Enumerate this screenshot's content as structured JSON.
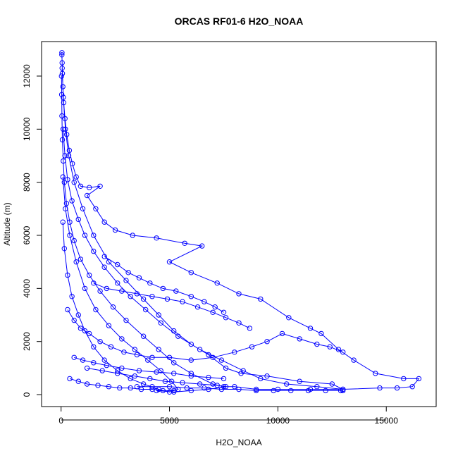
{
  "chart_data": {
    "type": "scatter",
    "title": "ORCAS RF01-6 H2O_NOAA",
    "xlabel": "H2O_NOAA",
    "ylabel": "Altitude (m)",
    "xlim": [
      -900,
      17300
    ],
    "ylim": [
      -450,
      13300
    ],
    "x_ticks": [
      0,
      5000,
      10000,
      15000
    ],
    "x_tick_labels": [
      "0",
      "5000",
      "10000",
      "15000"
    ],
    "y_ticks": [
      0,
      2000,
      4000,
      6000,
      8000,
      10000,
      12000
    ],
    "y_tick_labels": [
      "0",
      "2000",
      "4000",
      "6000",
      "8000",
      "10000",
      "12000"
    ],
    "grid": false,
    "legend": "none",
    "marker": "open-circle",
    "connect_points": true,
    "color": "#0000ff",
    "series": [
      {
        "points": [
          [
            40,
            12880
          ],
          [
            35,
            12800
          ],
          [
            50,
            12500
          ],
          [
            60,
            12100
          ],
          [
            80,
            11600
          ],
          [
            120,
            11000
          ],
          [
            180,
            10400
          ],
          [
            260,
            9800
          ],
          [
            380,
            9200
          ],
          [
            520,
            8700
          ],
          [
            700,
            8200
          ],
          [
            900,
            7850
          ],
          [
            1300,
            7800
          ],
          [
            1800,
            7850
          ],
          [
            1200,
            7500
          ],
          [
            1600,
            7000
          ],
          [
            2000,
            6500
          ],
          [
            2500,
            6200
          ],
          [
            3300,
            6000
          ],
          [
            4400,
            5900
          ],
          [
            5700,
            5700
          ],
          [
            6500,
            5600
          ],
          [
            5000,
            5000
          ],
          [
            6000,
            4600
          ],
          [
            7200,
            4200
          ],
          [
            8200,
            3800
          ],
          [
            9200,
            3600
          ],
          [
            10500,
            2900
          ],
          [
            11500,
            2500
          ],
          [
            12000,
            2300
          ],
          [
            12800,
            1700
          ],
          [
            13500,
            1300
          ],
          [
            14500,
            800
          ],
          [
            15800,
            600
          ],
          [
            16500,
            600
          ],
          [
            16200,
            300
          ],
          [
            15500,
            250
          ],
          [
            14700,
            250
          ],
          [
            13000,
            200
          ],
          [
            11500,
            200
          ],
          [
            10000,
            200
          ],
          [
            9000,
            200
          ],
          [
            8000,
            300
          ],
          [
            7500,
            300
          ],
          [
            7000,
            400
          ],
          [
            6000,
            800
          ],
          [
            5200,
            1200
          ],
          [
            4500,
            1700
          ],
          [
            3800,
            2200
          ],
          [
            3000,
            2800
          ],
          [
            2400,
            3300
          ],
          [
            1800,
            3900
          ],
          [
            1300,
            4500
          ],
          [
            900,
            5100
          ],
          [
            600,
            5800
          ],
          [
            400,
            6500
          ],
          [
            250,
            7200
          ],
          [
            150,
            8000
          ],
          [
            100,
            8800
          ],
          [
            60,
            9600
          ],
          [
            40,
            10500
          ],
          [
            30,
            11300
          ],
          [
            20,
            12000
          ]
        ]
      },
      {
        "points": [
          [
            50,
            12300
          ],
          [
            100,
            11200
          ],
          [
            200,
            10000
          ],
          [
            350,
            9000
          ],
          [
            600,
            8000
          ],
          [
            1000,
            7000
          ],
          [
            1500,
            6000
          ],
          [
            2200,
            5000
          ],
          [
            3000,
            4300
          ],
          [
            3800,
            3600
          ],
          [
            4500,
            3000
          ],
          [
            5200,
            2400
          ],
          [
            6000,
            1900
          ],
          [
            6800,
            1500
          ],
          [
            7600,
            1000
          ],
          [
            8300,
            800
          ],
          [
            9500,
            700
          ],
          [
            11000,
            500
          ],
          [
            12500,
            400
          ],
          [
            13000,
            200
          ],
          [
            11800,
            300
          ],
          [
            10400,
            400
          ],
          [
            9200,
            600
          ],
          [
            8400,
            900
          ],
          [
            7400,
            1300
          ],
          [
            6400,
            1700
          ],
          [
            5400,
            2200
          ],
          [
            4600,
            2700
          ],
          [
            3900,
            3200
          ],
          [
            3200,
            3700
          ],
          [
            2600,
            4200
          ],
          [
            2000,
            4800
          ],
          [
            1500,
            5400
          ],
          [
            1100,
            6000
          ],
          [
            800,
            6600
          ],
          [
            500,
            7300
          ],
          [
            300,
            8100
          ],
          [
            180,
            9000
          ],
          [
            90,
            10000
          ]
        ]
      },
      {
        "points": [
          [
            80,
            8200
          ],
          [
            200,
            7000
          ],
          [
            400,
            6000
          ],
          [
            700,
            5000
          ],
          [
            1100,
            4000
          ],
          [
            1600,
            3200
          ],
          [
            2200,
            2600
          ],
          [
            2800,
            2100
          ],
          [
            3400,
            1700
          ],
          [
            4000,
            1300
          ],
          [
            4600,
            900
          ],
          [
            5100,
            500
          ],
          [
            5400,
            200
          ],
          [
            5000,
            100
          ],
          [
            4500,
            200
          ],
          [
            3800,
            400
          ],
          [
            3200,
            600
          ],
          [
            2600,
            900
          ],
          [
            2000,
            1300
          ],
          [
            1500,
            1800
          ],
          [
            1100,
            2400
          ],
          [
            800,
            3000
          ],
          [
            500,
            3700
          ],
          [
            300,
            4500
          ],
          [
            150,
            5500
          ],
          [
            80,
            6500
          ]
        ]
      },
      {
        "points": [
          [
            3500,
            300
          ],
          [
            4200,
            300
          ],
          [
            5000,
            300
          ],
          [
            5800,
            250
          ],
          [
            6600,
            250
          ],
          [
            7400,
            200
          ],
          [
            8200,
            200
          ],
          [
            9000,
            150
          ],
          [
            9800,
            150
          ],
          [
            10600,
            150
          ],
          [
            11400,
            150
          ],
          [
            12200,
            150
          ],
          [
            12900,
            150
          ],
          [
            13000,
            150
          ]
        ]
      },
      {
        "points": [
          [
            300,
            3200
          ],
          [
            600,
            2800
          ],
          [
            900,
            2500
          ],
          [
            1300,
            2300
          ],
          [
            1800,
            2000
          ],
          [
            2300,
            1800
          ],
          [
            2900,
            1600
          ],
          [
            3500,
            1500
          ],
          [
            4200,
            1400
          ],
          [
            5000,
            1400
          ],
          [
            6000,
            1300
          ],
          [
            7000,
            1400
          ],
          [
            8000,
            1600
          ],
          [
            8800,
            1800
          ],
          [
            9500,
            2000
          ],
          [
            10200,
            2300
          ],
          [
            11000,
            2100
          ],
          [
            11800,
            1900
          ],
          [
            12400,
            1800
          ],
          [
            13000,
            1600
          ]
        ]
      },
      {
        "points": [
          [
            1200,
            1000
          ],
          [
            1900,
            900
          ],
          [
            2600,
            800
          ],
          [
            3400,
            700
          ],
          [
            4100,
            600
          ],
          [
            4800,
            500
          ],
          [
            5600,
            450
          ],
          [
            6400,
            400
          ],
          [
            7200,
            350
          ],
          [
            7600,
            300
          ],
          [
            6800,
            200
          ],
          [
            6000,
            150
          ],
          [
            5200,
            100
          ],
          [
            4400,
            150
          ]
        ]
      },
      {
        "points": [
          [
            1500,
            4200
          ],
          [
            2100,
            4000
          ],
          [
            2800,
            3900
          ],
          [
            3500,
            3800
          ],
          [
            4200,
            3700
          ],
          [
            4900,
            3600
          ],
          [
            5600,
            3500
          ],
          [
            6300,
            3300
          ],
          [
            7000,
            3100
          ],
          [
            7600,
            2900
          ],
          [
            8200,
            2700
          ],
          [
            8700,
            2500
          ]
        ]
      },
      {
        "points": [
          [
            600,
            1400
          ],
          [
            1000,
            1300
          ],
          [
            1500,
            1200
          ],
          [
            2100,
            1100
          ],
          [
            2800,
            1000
          ],
          [
            3600,
            900
          ],
          [
            4400,
            850
          ],
          [
            5200,
            800
          ],
          [
            6000,
            700
          ],
          [
            6800,
            650
          ],
          [
            7500,
            600
          ]
        ]
      },
      {
        "points": [
          [
            400,
            600
          ],
          [
            800,
            500
          ],
          [
            1200,
            400
          ],
          [
            1700,
            350
          ],
          [
            2200,
            300
          ],
          [
            2700,
            250
          ],
          [
            3200,
            250
          ],
          [
            3700,
            200
          ],
          [
            4200,
            200
          ],
          [
            4700,
            150
          ],
          [
            5200,
            150
          ]
        ]
      },
      {
        "points": [
          [
            2000,
            5200
          ],
          [
            2600,
            4900
          ],
          [
            3100,
            4600
          ],
          [
            3600,
            4400
          ],
          [
            4100,
            4200
          ],
          [
            4700,
            4000
          ],
          [
            5300,
            3900
          ],
          [
            6000,
            3700
          ],
          [
            6600,
            3500
          ],
          [
            7100,
            3300
          ],
          [
            7500,
            3100
          ]
        ]
      }
    ]
  }
}
